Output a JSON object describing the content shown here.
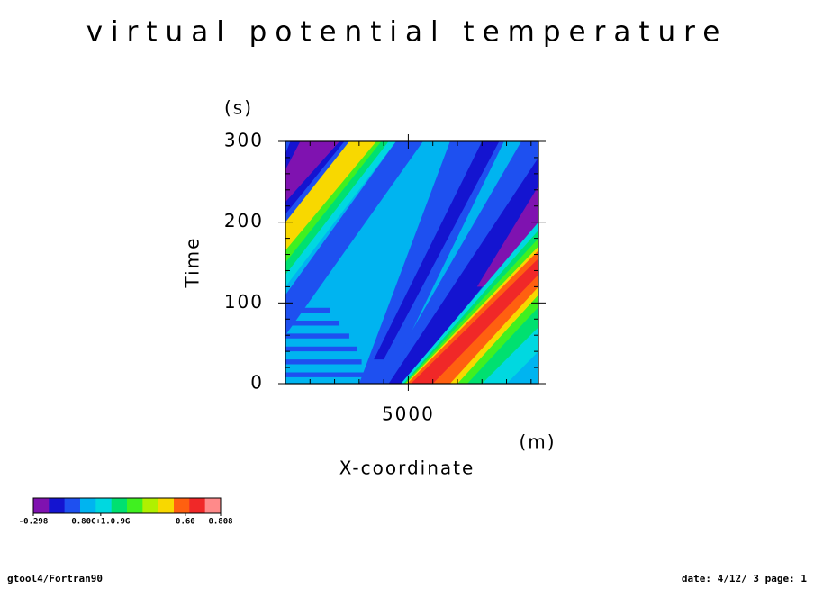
{
  "chart_data": {
    "type": "contour",
    "title": "virtual potential temperature",
    "x_label": "X-coordinate",
    "x_unit": "(m)",
    "y_label": "Time",
    "y_unit": "(s)",
    "xlim": [
      0,
      10300
    ],
    "xticks": [
      5000
    ],
    "xminorticks": [
      1000,
      2000,
      3000,
      4000,
      6000,
      7000,
      8000,
      9000,
      10000
    ],
    "ylim": [
      0,
      300
    ],
    "yticks": [
      0,
      100,
      200,
      300
    ],
    "yminorticks": [
      20,
      40,
      60,
      80,
      120,
      140,
      160,
      180,
      220,
      240,
      260,
      280
    ],
    "background_level": 0.025,
    "colorbar": {
      "lim": [
        -0.298,
        0.808
      ],
      "colors": [
        "#7f12b0",
        "#1414d0",
        "#1e50f0",
        "#00b4f0",
        "#00d8e0",
        "#00e070",
        "#40f020",
        "#b0f000",
        "#f8d800",
        "#ff6010",
        "#f02828",
        "#ff8a8a"
      ],
      "ticks": [
        -0.298,
        {
          "value": 0.1,
          "label": "0.80C+1.0.9G"
        },
        {
          "value": 0.6,
          "label": "0.60"
        },
        0.808
      ]
    },
    "bands": [
      {
        "level": -0.067,
        "points": [
          [
            3900,
            0
          ],
          [
            4900,
            0
          ],
          [
            10300,
            200
          ],
          [
            10300,
            300
          ],
          [
            9600,
            300
          ]
        ]
      },
      {
        "level": -0.16,
        "points": [
          [
            4200,
            0
          ],
          [
            4800,
            0
          ],
          [
            10300,
            205
          ],
          [
            10300,
            280
          ]
        ]
      },
      {
        "level": -0.252,
        "points": [
          [
            7800,
            120
          ],
          [
            8300,
            120
          ],
          [
            10300,
            200
          ],
          [
            10300,
            245
          ]
        ]
      },
      {
        "level": 0.117,
        "points": [
          [
            4700,
            0
          ],
          [
            9000,
            0
          ],
          [
            10300,
            40
          ],
          [
            10300,
            200
          ]
        ]
      },
      {
        "level": 0.209,
        "points": [
          [
            4800,
            0
          ],
          [
            8000,
            0
          ],
          [
            10300,
            70
          ],
          [
            10300,
            190
          ]
        ]
      },
      {
        "level": 0.302,
        "points": [
          [
            4850,
            0
          ],
          [
            7400,
            0
          ],
          [
            10300,
            95
          ],
          [
            10300,
            180
          ]
        ]
      },
      {
        "level": 0.486,
        "points": [
          [
            4900,
            0
          ],
          [
            7000,
            0
          ],
          [
            10300,
            110
          ],
          [
            10300,
            170
          ]
        ]
      },
      {
        "level": 0.578,
        "points": [
          [
            4950,
            0
          ],
          [
            6700,
            0
          ],
          [
            10300,
            120
          ],
          [
            10300,
            165
          ]
        ]
      },
      {
        "level": 0.67,
        "points": [
          [
            5100,
            0
          ],
          [
            6000,
            0
          ],
          [
            10300,
            135
          ],
          [
            10300,
            155
          ]
        ]
      },
      {
        "level": -0.067,
        "points": [
          [
            3000,
            0
          ],
          [
            4100,
            0
          ],
          [
            8900,
            300
          ],
          [
            6700,
            300
          ]
        ]
      },
      {
        "level": -0.16,
        "points": [
          [
            3600,
            30
          ],
          [
            4000,
            30
          ],
          [
            8700,
            300
          ],
          [
            8000,
            300
          ]
        ]
      },
      {
        "level": -0.067,
        "points": [
          [
            0,
            60
          ],
          [
            0,
            110
          ],
          [
            4500,
            300
          ],
          [
            5600,
            300
          ]
        ]
      },
      {
        "level": -0.067,
        "points": [
          [
            0,
            8
          ],
          [
            3300,
            8
          ],
          [
            3300,
            14
          ],
          [
            0,
            14
          ]
        ]
      },
      {
        "level": -0.067,
        "points": [
          [
            0,
            24
          ],
          [
            3100,
            24
          ],
          [
            3100,
            30
          ],
          [
            0,
            30
          ]
        ]
      },
      {
        "level": -0.067,
        "points": [
          [
            0,
            40
          ],
          [
            2900,
            40
          ],
          [
            2900,
            46
          ],
          [
            0,
            46
          ]
        ]
      },
      {
        "level": -0.067,
        "points": [
          [
            0,
            56
          ],
          [
            2600,
            56
          ],
          [
            2600,
            62
          ],
          [
            0,
            62
          ]
        ]
      },
      {
        "level": -0.067,
        "points": [
          [
            0,
            72
          ],
          [
            2200,
            72
          ],
          [
            2200,
            78
          ],
          [
            0,
            78
          ]
        ]
      },
      {
        "level": -0.067,
        "points": [
          [
            0,
            88
          ],
          [
            1800,
            88
          ],
          [
            1800,
            94
          ],
          [
            0,
            94
          ]
        ]
      },
      {
        "level": 0.117,
        "points": [
          [
            0,
            120
          ],
          [
            4500,
            300
          ],
          [
            1200,
            300
          ],
          [
            0,
            255
          ]
        ]
      },
      {
        "level": 0.209,
        "points": [
          [
            0,
            135
          ],
          [
            4200,
            300
          ],
          [
            1500,
            300
          ],
          [
            0,
            245
          ]
        ]
      },
      {
        "level": 0.302,
        "points": [
          [
            0,
            150
          ],
          [
            3900,
            300
          ],
          [
            1900,
            300
          ],
          [
            0,
            235
          ]
        ]
      },
      {
        "level": 0.486,
        "points": [
          [
            0,
            165
          ],
          [
            3700,
            300
          ],
          [
            2300,
            300
          ],
          [
            0,
            220
          ]
        ]
      },
      {
        "level": -0.067,
        "points": [
          [
            0,
            200
          ],
          [
            2600,
            300
          ],
          [
            0,
            300
          ]
        ]
      },
      {
        "level": -0.16,
        "points": [
          [
            0,
            210
          ],
          [
            2400,
            300
          ],
          [
            200,
            300
          ],
          [
            0,
            285
          ]
        ]
      },
      {
        "level": -0.252,
        "points": [
          [
            0,
            225
          ],
          [
            2200,
            300
          ],
          [
            600,
            300
          ],
          [
            0,
            265
          ]
        ]
      }
    ]
  },
  "footer": {
    "left": "gtool4/Fortran90",
    "right": "date: 4/12/ 3 page: 1"
  }
}
